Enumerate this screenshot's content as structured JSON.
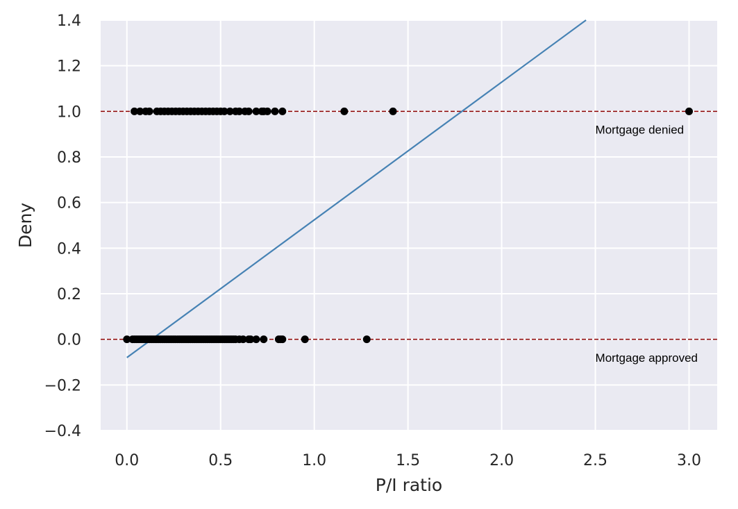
{
  "chart_data": {
    "type": "scatter",
    "title": "",
    "xlabel": "P/I ratio",
    "ylabel": "Deny",
    "xlim": [
      -0.14,
      3.15
    ],
    "ylim": [
      -0.4,
      1.4
    ],
    "xticks": [
      0.0,
      0.5,
      1.0,
      1.5,
      2.0,
      2.5,
      3.0
    ],
    "yticks": [
      -0.4,
      -0.2,
      0.0,
      0.2,
      0.4,
      0.6,
      0.8,
      1.0,
      1.2,
      1.4
    ],
    "xtick_labels": [
      "0.0",
      "0.5",
      "1.0",
      "1.5",
      "2.0",
      "2.5",
      "3.0"
    ],
    "ytick_labels": [
      "−0.4",
      "−0.2",
      "0.0",
      "0.2",
      "0.4",
      "0.6",
      "0.8",
      "1.0",
      "1.2",
      "1.4"
    ],
    "grid": true,
    "background_color": "#eaeaf2",
    "grid_color": "#ffffff",
    "series": [
      {
        "marker_color": "#000000",
        "x": [
          0.0,
          0.03,
          0.04,
          0.05,
          0.06,
          0.07,
          0.08,
          0.09,
          0.1,
          0.11,
          0.12,
          0.13,
          0.14,
          0.15,
          0.16,
          0.17,
          0.18,
          0.19,
          0.2,
          0.21,
          0.22,
          0.23,
          0.24,
          0.25,
          0.26,
          0.27,
          0.28,
          0.29,
          0.3,
          0.31,
          0.32,
          0.33,
          0.34,
          0.35,
          0.36,
          0.37,
          0.38,
          0.39,
          0.4,
          0.41,
          0.42,
          0.43,
          0.44,
          0.45,
          0.46,
          0.47,
          0.48,
          0.49,
          0.5,
          0.51,
          0.52,
          0.53,
          0.54,
          0.55,
          0.56,
          0.57,
          0.58,
          0.6,
          0.62,
          0.65,
          0.66,
          0.69,
          0.73,
          0.81,
          0.82,
          0.83,
          0.95,
          1.28
        ],
        "y": [
          0,
          0,
          0,
          0,
          0,
          0,
          0,
          0,
          0,
          0,
          0,
          0,
          0,
          0,
          0,
          0,
          0,
          0,
          0,
          0,
          0,
          0,
          0,
          0,
          0,
          0,
          0,
          0,
          0,
          0,
          0,
          0,
          0,
          0,
          0,
          0,
          0,
          0,
          0,
          0,
          0,
          0,
          0,
          0,
          0,
          0,
          0,
          0,
          0,
          0,
          0,
          0,
          0,
          0,
          0,
          0,
          0,
          0,
          0,
          0,
          0,
          0,
          0,
          0,
          0,
          0,
          0,
          0
        ]
      },
      {
        "marker_color": "#000000",
        "x": [
          0.04,
          0.07,
          0.1,
          0.12,
          0.16,
          0.18,
          0.2,
          0.22,
          0.24,
          0.26,
          0.28,
          0.3,
          0.32,
          0.34,
          0.36,
          0.38,
          0.4,
          0.42,
          0.44,
          0.46,
          0.48,
          0.5,
          0.52,
          0.55,
          0.58,
          0.6,
          0.63,
          0.65,
          0.69,
          0.72,
          0.73,
          0.75,
          0.79,
          0.83,
          1.16,
          1.42,
          3.0
        ],
        "y": [
          1,
          1,
          1,
          1,
          1,
          1,
          1,
          1,
          1,
          1,
          1,
          1,
          1,
          1,
          1,
          1,
          1,
          1,
          1,
          1,
          1,
          1,
          1,
          1,
          1,
          1,
          1,
          1,
          1,
          1,
          1,
          1,
          1,
          1,
          1,
          1,
          1
        ]
      }
    ],
    "regression_line": {
      "x": [
        0.0,
        2.45
      ],
      "y": [
        -0.08,
        1.4
      ],
      "color": "#4682b4"
    },
    "hlines": [
      {
        "y": 1.0,
        "color": "#8b0000",
        "style": "dashed"
      },
      {
        "y": 0.0,
        "color": "#8b0000",
        "style": "dashed"
      }
    ],
    "annotations": [
      {
        "text": "Mortgage denied",
        "x": 2.5,
        "y": 0.92
      },
      {
        "text": "Mortgage approved",
        "x": 2.5,
        "y": -0.08
      }
    ]
  }
}
